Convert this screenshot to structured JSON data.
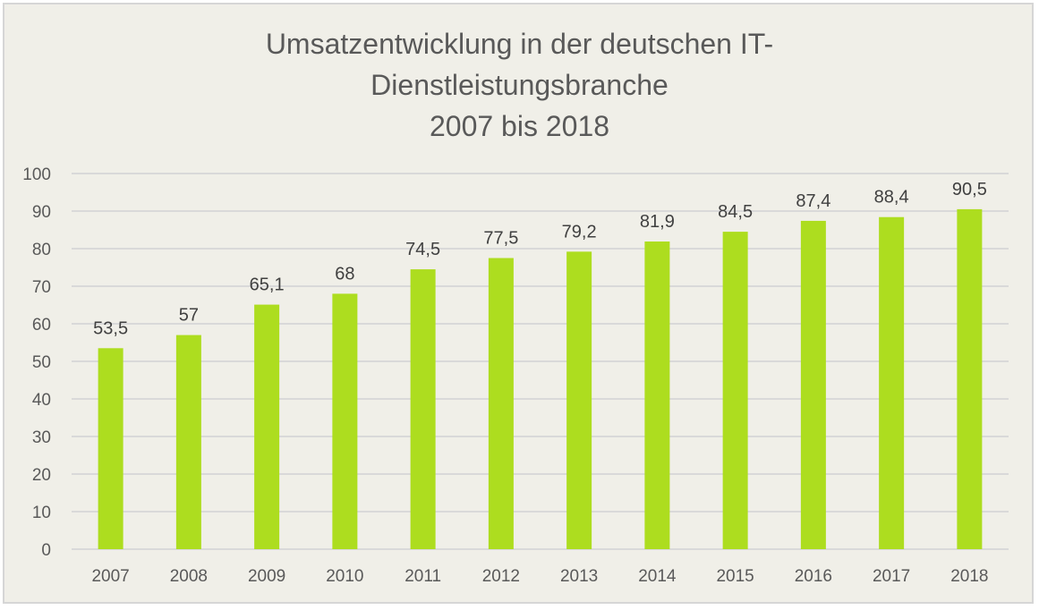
{
  "chart_data": {
    "type": "bar",
    "title_lines": [
      "Umsatzentwicklung in der deutschen IT-",
      "Dienstleistungsbranche",
      "2007 bis 2018"
    ],
    "categories": [
      "2007",
      "2008",
      "2009",
      "2010",
      "2011",
      "2012",
      "2013",
      "2014",
      "2015",
      "2016",
      "2017",
      "2018"
    ],
    "values": [
      53.5,
      57,
      65.1,
      68,
      74.5,
      77.5,
      79.2,
      81.9,
      84.5,
      87.4,
      88.4,
      90.5
    ],
    "data_labels": [
      "53,5",
      "57",
      "65,1",
      "68",
      "74,5",
      "77,5",
      "79,2",
      "81,9",
      "84,5",
      "87,4",
      "88,4",
      "90,5"
    ],
    "yticks": [
      "0",
      "10",
      "20",
      "30",
      "40",
      "50",
      "60",
      "70",
      "80",
      "90",
      "100"
    ],
    "ylim": [
      0,
      100
    ],
    "xlabel": "",
    "ylabel": "",
    "grid": true,
    "legend": "none",
    "colors": {
      "bar": "#addd1f",
      "grid": "#d9d9d9",
      "background": "#f0efe8",
      "text": "#595959"
    }
  }
}
